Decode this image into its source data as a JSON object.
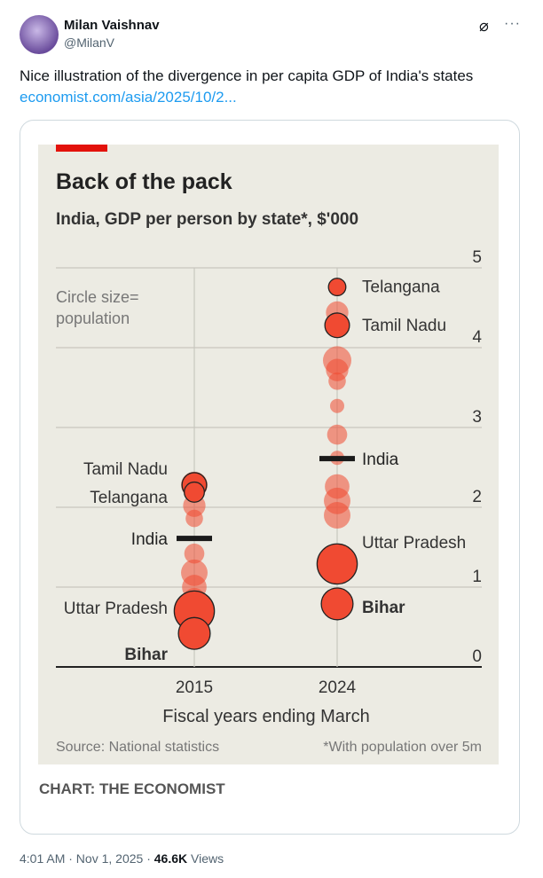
{
  "author": {
    "name": "Milan Vaishnav",
    "handle": "@MilanV"
  },
  "tweet": {
    "text": "Nice illustration of the divergence in per capita GDP of India's states",
    "link": "economist.com/asia/2025/10/2..."
  },
  "card": {
    "credit": "CHART: THE ECONOMIST"
  },
  "meta": {
    "time": "4:01 AM · Nov 1, 2025 · ",
    "views": "46.6K",
    "views_label": " Views"
  },
  "colors": {
    "accent": "#e3120b",
    "bubble": "#f04a32",
    "panel": "#ecebe3"
  },
  "chart_data": {
    "type": "scatter",
    "title": "Back of the pack",
    "subtitle": "India, GDP per person by state*, $'000",
    "legend_note_1": "Circle size=",
    "legend_note_2": "population",
    "xlabel": "Fiscal years ending March",
    "categories": [
      "2015",
      "2024"
    ],
    "yticks": [
      "0",
      "1",
      "2",
      "3",
      "4",
      "5"
    ],
    "ylim": [
      0,
      5
    ],
    "source": "Source: National statistics",
    "footnote": "*With population over 5m",
    "series": [
      {
        "year": "2015",
        "points": [
          {
            "v": 2.28,
            "pop": 3,
            "label": "Tamil Nadu",
            "hl": true
          },
          {
            "v": 2.19,
            "pop": 2,
            "label": "Telangana",
            "hl": true
          },
          {
            "v": 2.28,
            "pop": 3.5
          },
          {
            "v": 2.02,
            "pop": 2.5
          },
          {
            "v": 1.86,
            "pop": 1.5
          },
          {
            "v": 1.42,
            "pop": 2
          },
          {
            "v": 1.18,
            "pop": 3.5
          },
          {
            "v": 1.0,
            "pop": 3
          },
          {
            "v": 0.85,
            "pop": 2.5
          },
          {
            "v": 0.7,
            "pop": 8,
            "label": "Uttar Pradesh",
            "hl": true
          },
          {
            "v": 0.42,
            "pop": 5,
            "label": "Bihar",
            "hl": true,
            "bold": true
          }
        ],
        "india": 1.61
      },
      {
        "year": "2024",
        "points": [
          {
            "v": 4.76,
            "pop": 1.5,
            "label": "Telangana",
            "hl": true
          },
          {
            "v": 4.44,
            "pop": 2.5
          },
          {
            "v": 4.28,
            "pop": 3,
            "label": "Tamil Nadu",
            "hl": true
          },
          {
            "v": 3.84,
            "pop": 4
          },
          {
            "v": 3.72,
            "pop": 2.5
          },
          {
            "v": 3.58,
            "pop": 1.5
          },
          {
            "v": 3.27,
            "pop": 1
          },
          {
            "v": 2.91,
            "pop": 2
          },
          {
            "v": 2.62,
            "pop": 1
          },
          {
            "v": 2.26,
            "pop": 3
          },
          {
            "v": 2.08,
            "pop": 3.5
          },
          {
            "v": 1.9,
            "pop": 3.5
          },
          {
            "v": 1.29,
            "pop": 8,
            "label": "Uttar Pradesh",
            "hl": true
          },
          {
            "v": 0.79,
            "pop": 5,
            "label": "Bihar",
            "hl": true,
            "bold": true
          }
        ],
        "india": 2.61
      }
    ],
    "india_label": "India"
  }
}
